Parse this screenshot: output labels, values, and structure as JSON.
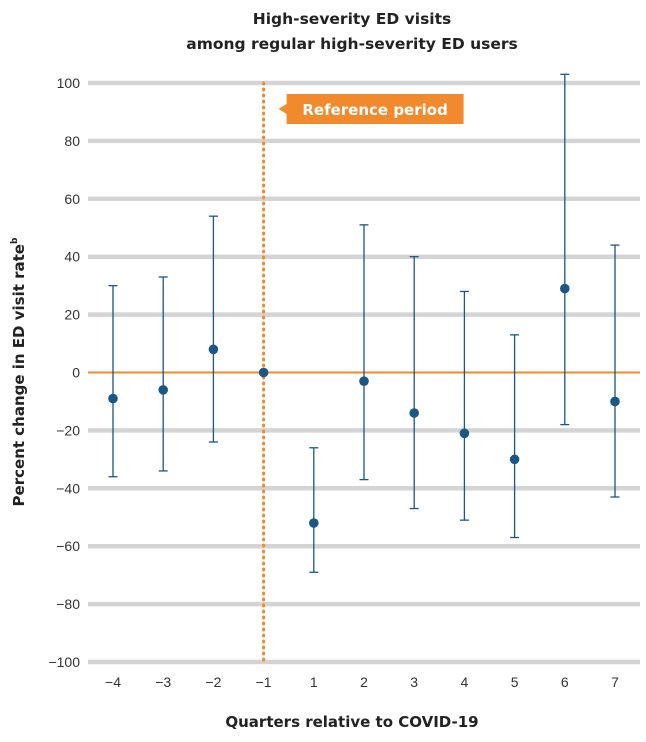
{
  "chart_data": {
    "type": "scatter",
    "title": [
      "High-severity ED visits",
      "among regular high-severity ED users"
    ],
    "xlabel": "Quarters relative to COVID-19",
    "ylabel": "Percent change in ED visit rate",
    "ylabel_superscript": "b",
    "x": [
      -4,
      -3,
      -2,
      -1,
      1,
      2,
      3,
      4,
      5,
      6,
      7
    ],
    "x_tick_labels": [
      "−4",
      "−3",
      "−2",
      "−1",
      "1",
      "2",
      "3",
      "4",
      "5",
      "6",
      "7"
    ],
    "series": [
      {
        "values": [
          -9,
          -6,
          8,
          0,
          -52,
          -3,
          -14,
          -21,
          -30,
          29,
          -10
        ],
        "lower": [
          -36,
          -34,
          -24,
          0,
          -69,
          -37,
          -47,
          -51,
          -57,
          -18,
          -43
        ],
        "upper": [
          30,
          33,
          54,
          0,
          -26,
          51,
          40,
          28,
          13,
          103,
          44
        ]
      }
    ],
    "ylim": [
      -100,
      100
    ],
    "y_ticks": [
      -100,
      -80,
      -60,
      -40,
      -20,
      0,
      20,
      40,
      60,
      80,
      100
    ],
    "y_tick_labels": [
      "−100",
      "−80",
      "−60",
      "−40",
      "−20",
      "0",
      "20",
      "40",
      "60",
      "80",
      "100"
    ],
    "grid": true,
    "reference_line": {
      "x": -1,
      "label": "Reference period"
    },
    "zero_line": true,
    "colors": {
      "point": "#1a5784",
      "error_bar": "#1a5784",
      "zero_line": "#f08a2c",
      "reference": "#f08a2c",
      "grid": "#d4d4d4"
    }
  }
}
